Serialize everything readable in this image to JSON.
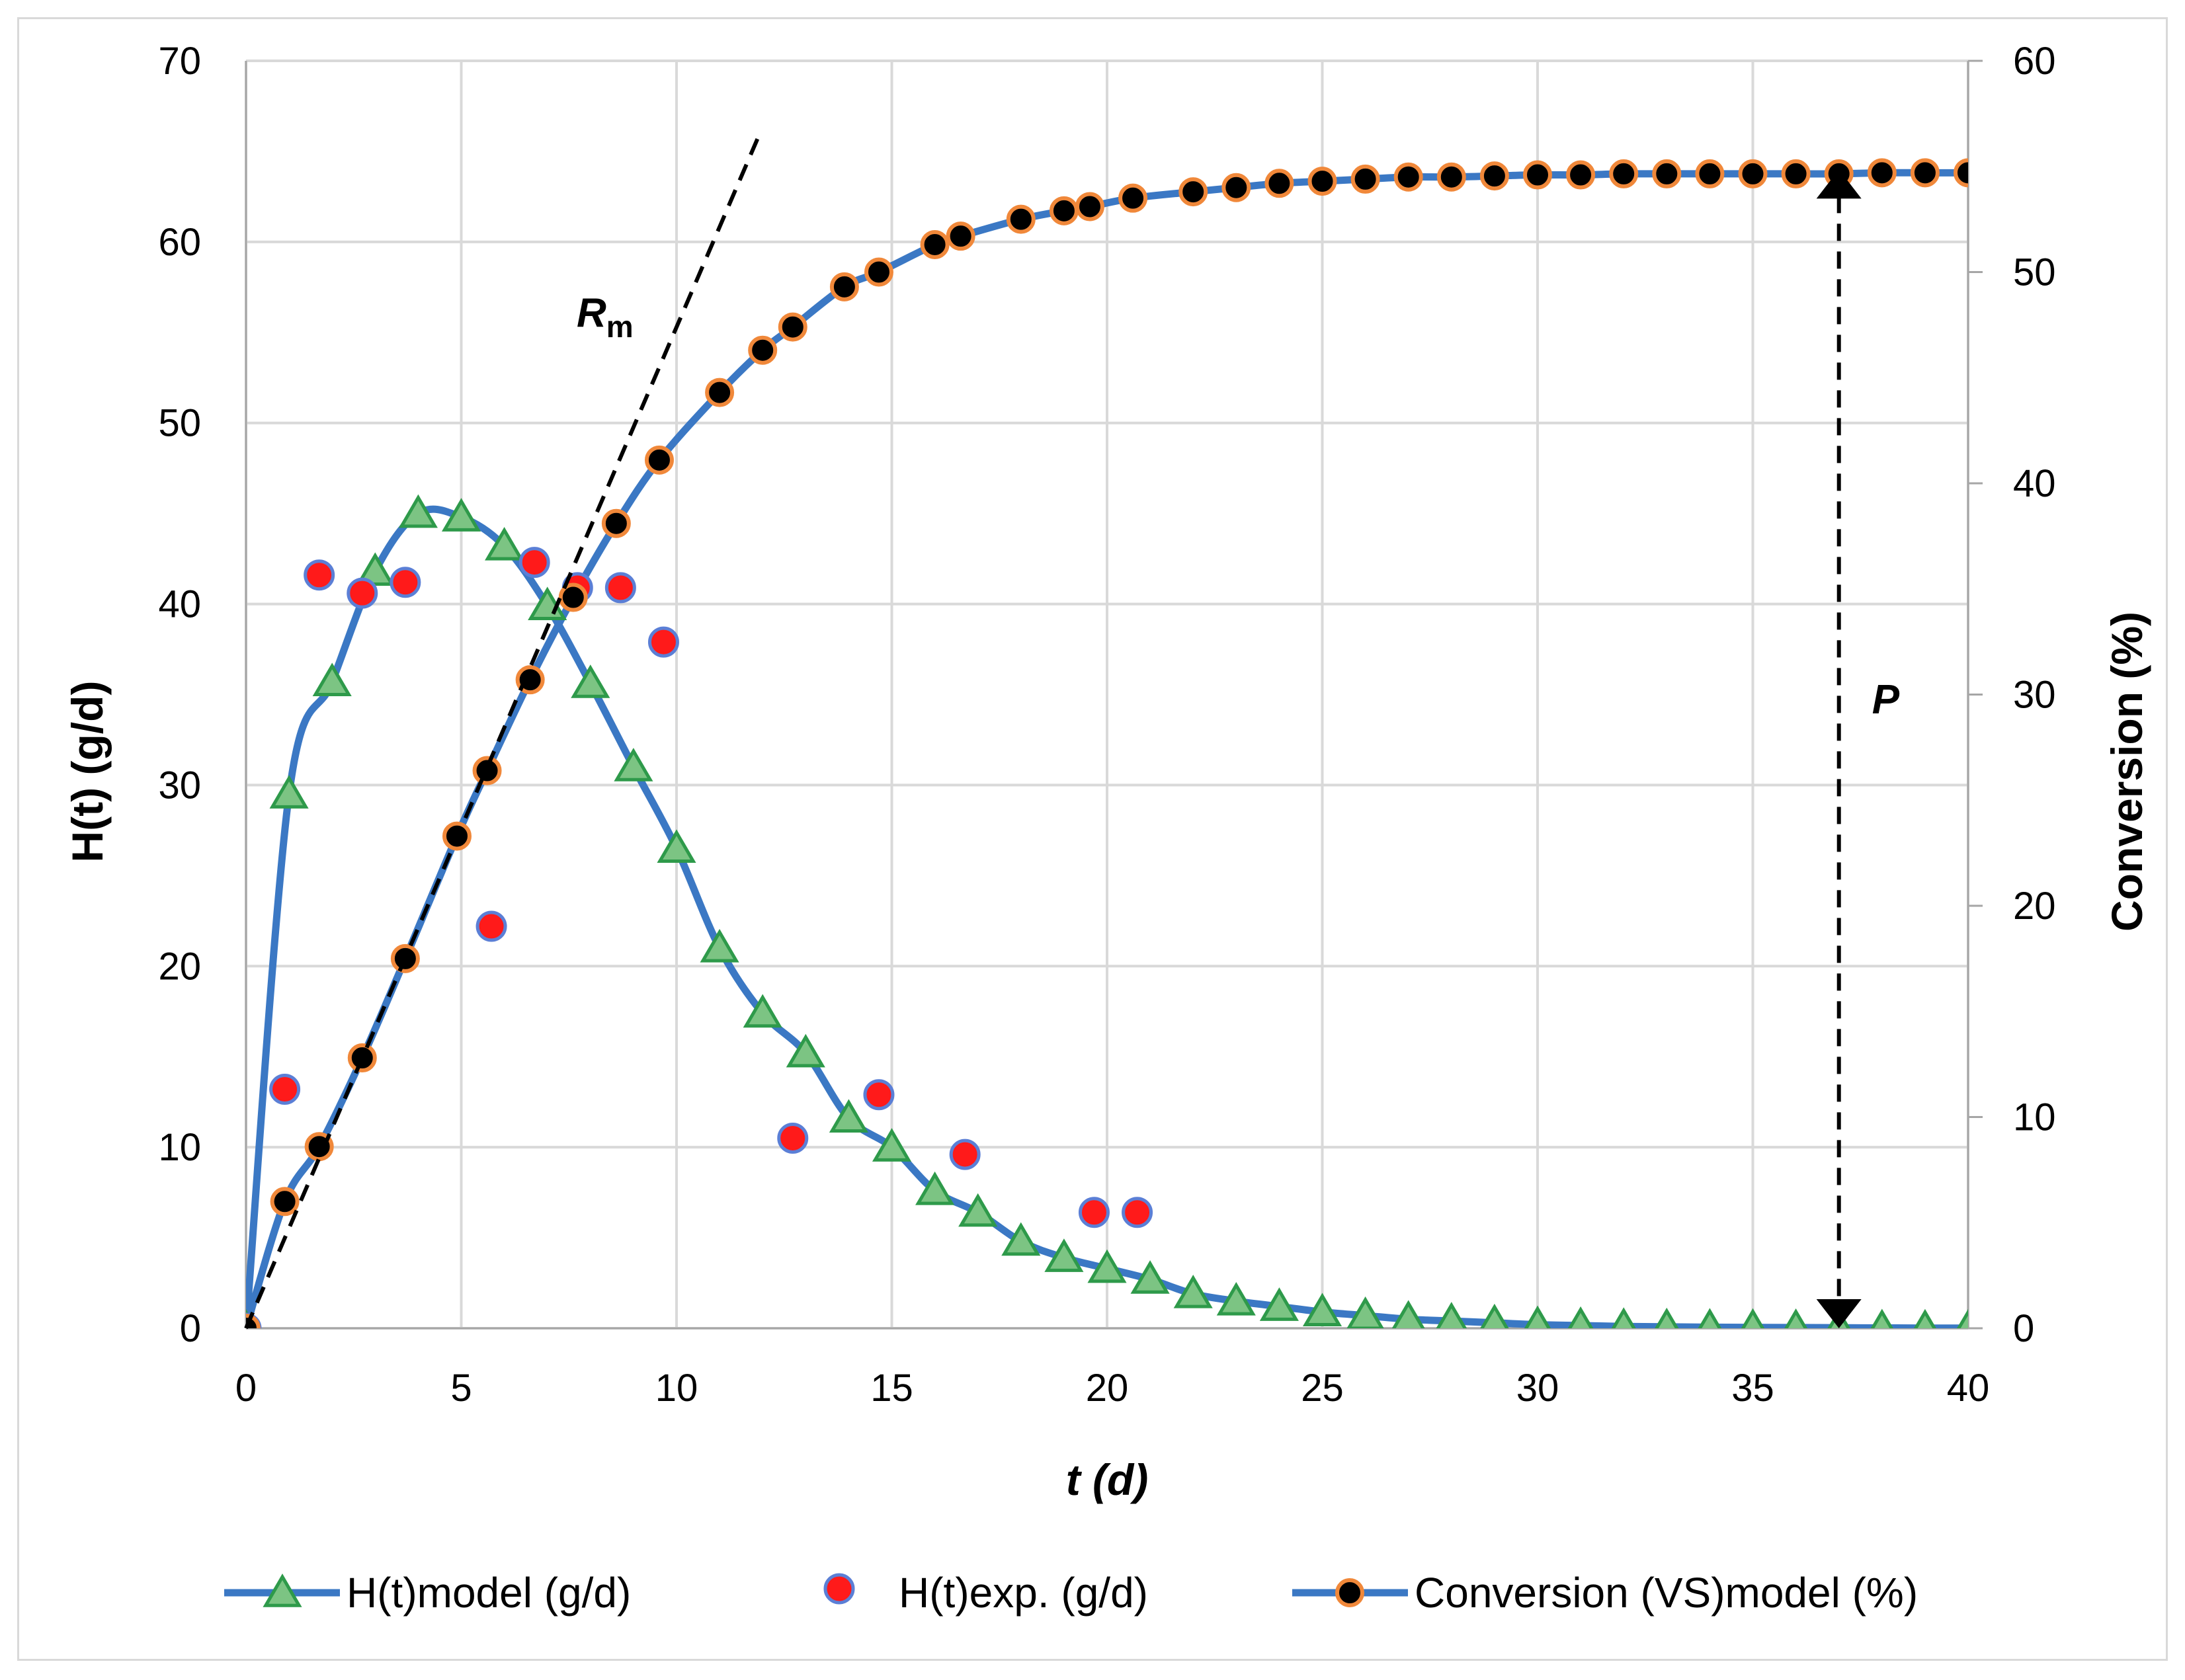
{
  "chart_data": {
    "type": "line",
    "title": "",
    "xlabel": "t (d)",
    "ylabel": "H(t) (g/d)",
    "y2label": "Conversion (%)",
    "xlim": [
      0,
      40
    ],
    "ylim": [
      0,
      70
    ],
    "y2lim": [
      0,
      60
    ],
    "xticks": [
      "0",
      "5",
      "10",
      "15",
      "20",
      "25",
      "30",
      "35",
      "40"
    ],
    "yticks": [
      "0",
      "10",
      "20",
      "30",
      "40",
      "50",
      "60",
      "70"
    ],
    "y2ticks": [
      "0",
      "10",
      "20",
      "30",
      "40",
      "50",
      "60"
    ],
    "grid": true,
    "legend_position": "bottom",
    "series": [
      {
        "name": "H(t)model (g/d)",
        "axis": "left",
        "style": "line-triangle",
        "line_color": "#3b78c4",
        "marker_fill": "#7cc483",
        "marker_edge": "#2e9a4a",
        "x": [
          0,
          1,
          2,
          3,
          4,
          5,
          6,
          7,
          8,
          9,
          10,
          11,
          12,
          13,
          14,
          15,
          16,
          17,
          18,
          19,
          20,
          21,
          22,
          23,
          24,
          25,
          26,
          27,
          28,
          29,
          30,
          31,
          32,
          33,
          34,
          35,
          36,
          37,
          38,
          39,
          40
        ],
        "values": [
          0,
          29.5,
          35.7,
          41.8,
          45.0,
          44.8,
          43.2,
          39.9,
          35.6,
          31.0,
          26.5,
          21.0,
          17.4,
          15.2,
          11.6,
          10.0,
          7.6,
          6.4,
          4.8,
          3.9,
          3.3,
          2.7,
          1.9,
          1.5,
          1.2,
          0.9,
          0.7,
          0.5,
          0.4,
          0.3,
          0.2,
          0.15,
          0.1,
          0.08,
          0.06,
          0.05,
          0.04,
          0.03,
          0.02,
          0.01,
          0.01
        ]
      },
      {
        "name": "H(t)exp. (g/d)",
        "axis": "left",
        "style": "marker-circle",
        "marker_fill": "#ff1a1a",
        "marker_edge": "#5b7fd6",
        "x": [
          0,
          0.9,
          1.7,
          2.7,
          3.7,
          5.7,
          6.7,
          7.7,
          8.7,
          9.7,
          12.7,
          14.7,
          16.7,
          19.7,
          20.7
        ],
        "values": [
          0,
          13.2,
          41.6,
          40.6,
          41.2,
          22.2,
          42.3,
          40.9,
          40.9,
          37.9,
          10.5,
          12.9,
          9.6,
          6.4,
          6.4
        ]
      },
      {
        "name": "Conversion (VS)model (%)",
        "axis": "right",
        "style": "line-circle",
        "line_color": "#3b78c4",
        "marker_fill": "#000000",
        "marker_edge": "#f0883a",
        "x": [
          0,
          0.9,
          1.7,
          2.7,
          3.7,
          4.9,
          5.6,
          6.6,
          7.6,
          8.6,
          9.6,
          11.0,
          12.0,
          12.7,
          13.9,
          14.7,
          16.0,
          16.6,
          18.0,
          19.0,
          19.6,
          20.6,
          22.0,
          23.0,
          24.0,
          25.0,
          26.0,
          27.0,
          28.0,
          29.0,
          30.0,
          31.0,
          32.0,
          33.0,
          34.0,
          35.0,
          36.0,
          37.0,
          38.0,
          39.0,
          40.0
        ],
        "values": [
          0,
          6.0,
          8.6,
          12.8,
          17.5,
          23.3,
          26.4,
          30.7,
          34.6,
          38.1,
          41.1,
          44.3,
          46.3,
          47.4,
          49.3,
          50.0,
          51.3,
          51.7,
          52.5,
          52.9,
          53.1,
          53.5,
          53.8,
          54.0,
          54.2,
          54.3,
          54.4,
          54.5,
          54.5,
          54.55,
          54.6,
          54.6,
          54.65,
          54.65,
          54.65,
          54.65,
          54.65,
          54.65,
          54.7,
          54.7,
          54.7
        ]
      }
    ],
    "annotations": [
      {
        "label": "R",
        "subscript": "m",
        "type": "dashed-tangent",
        "from": [
          0,
          0
        ],
        "to": [
          11.9,
          65.8
        ]
      },
      {
        "label": "P",
        "type": "dashed-double-arrow",
        "x": 37,
        "y_from": 0,
        "y_to": 64.0
      }
    ]
  }
}
